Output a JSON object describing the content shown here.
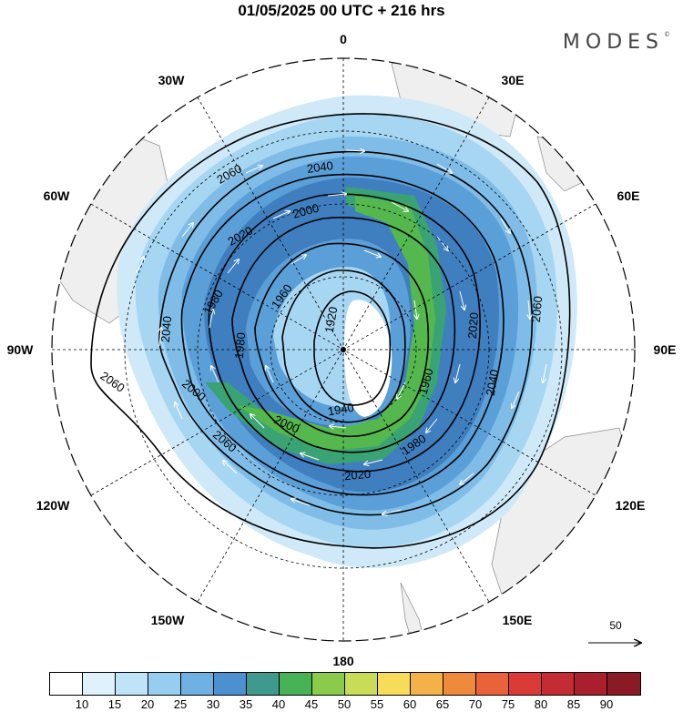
{
  "header": {
    "title": "01/05/2025  00 UTC  + 216 hrs",
    "brand": "MODES",
    "brand_mark": "©"
  },
  "map": {
    "projection": "south polar stereographic",
    "lon_labels": {
      "top": "0",
      "top_right": "30E",
      "right_upper": "60E",
      "right": "90E",
      "right_lower": "120E",
      "bottom_right": "150E",
      "bottom": "180",
      "bottom_left": "150W",
      "left_lower": "120W",
      "left": "90W",
      "left_upper": "60W",
      "top_left": "30W"
    },
    "contour_labels": [
      "2060",
      "2040",
      "2020",
      "2000",
      "1960",
      "1980",
      "1920",
      "1940",
      "1960",
      "1980",
      "2020",
      "2040",
      "2060",
      "2000",
      "2020",
      "2040",
      "2060",
      "1980",
      "2000",
      "2060"
    ],
    "shading_colors": {
      "15": "#cfe9f8",
      "20": "#a7d6f2",
      "25": "#7fbde8",
      "30": "#5b9fd8",
      "35": "#3f7fc0",
      "40": "#3aa373",
      "45": "#55b84e"
    },
    "land_color": "#efefef"
  },
  "vector_reference": {
    "label": "50"
  },
  "colorbar": {
    "ticks": [
      "10",
      "15",
      "20",
      "25",
      "30",
      "35",
      "40",
      "45",
      "50",
      "55",
      "60",
      "65",
      "70",
      "75",
      "80",
      "85",
      "90"
    ],
    "colors": [
      "#ffffff",
      "#dff1fb",
      "#bfe3f7",
      "#97cdee",
      "#6eb1e2",
      "#4d90cf",
      "#3f9a8d",
      "#48b356",
      "#8acb4c",
      "#c8dd55",
      "#f7dc5a",
      "#f4b14a",
      "#ef8a3c",
      "#e9623a",
      "#db3b36",
      "#c42b33",
      "#a91f2e",
      "#8a1a24"
    ]
  }
}
